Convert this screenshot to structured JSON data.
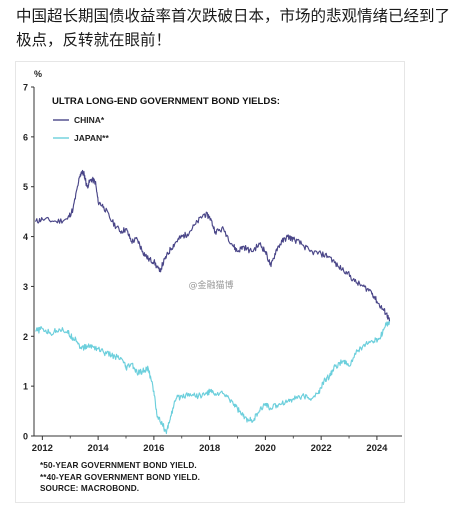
{
  "post": {
    "caption": "中国超长期国债收益率首次跌破日本，市场的悲观情绪已经到了极点，反转就在眼前！",
    "watermark": "@金融猫博"
  },
  "chart_data": {
    "type": "line",
    "title": "ULTRA LONG-END GOVERNMENT BOND YIELDS:",
    "ylabel": "%",
    "xlim": [
      2011.7,
      2024.9
    ],
    "ylim": [
      0,
      7
    ],
    "xticks": [
      2012,
      2014,
      2016,
      2018,
      2020,
      2022,
      2024
    ],
    "yticks": [
      0,
      1,
      2,
      3,
      4,
      5,
      6,
      7
    ],
    "legend_position": "top-left",
    "series": [
      {
        "name": "CHINA*",
        "color": "#4a4688",
        "x": [
          2011.75,
          2012.0,
          2012.5,
          2012.9,
          2013.1,
          2013.3,
          2013.4,
          2013.5,
          2013.6,
          2013.75,
          2013.9,
          2014.0,
          2014.2,
          2014.5,
          2014.8,
          2015.0,
          2015.2,
          2015.4,
          2015.6,
          2015.8,
          2016.0,
          2016.2,
          2016.4,
          2016.6,
          2016.8,
          2017.0,
          2017.2,
          2017.5,
          2017.8,
          2018.0,
          2018.2,
          2018.5,
          2018.8,
          2019.0,
          2019.2,
          2019.5,
          2019.8,
          2020.0,
          2020.2,
          2020.4,
          2020.6,
          2020.8,
          2021.0,
          2021.3,
          2021.6,
          2022.0,
          2022.3,
          2022.6,
          2022.9,
          2023.2,
          2023.5,
          2023.8,
          2024.0,
          2024.2,
          2024.35,
          2024.45
        ],
        "y": [
          4.3,
          4.35,
          4.3,
          4.35,
          4.55,
          5.1,
          5.3,
          5.25,
          5.0,
          5.15,
          5.1,
          4.7,
          4.6,
          4.3,
          4.1,
          4.15,
          3.9,
          3.95,
          3.7,
          3.55,
          3.5,
          3.3,
          3.55,
          3.75,
          3.9,
          4.0,
          4.05,
          4.25,
          4.45,
          4.4,
          4.1,
          4.15,
          3.85,
          3.7,
          3.8,
          3.7,
          3.85,
          3.7,
          3.4,
          3.75,
          3.9,
          4.0,
          3.95,
          3.85,
          3.7,
          3.65,
          3.6,
          3.4,
          3.3,
          3.1,
          3.0,
          2.9,
          2.7,
          2.55,
          2.45,
          2.3
        ]
      },
      {
        "name": "JAPAN**",
        "color": "#6ccfdc",
        "x": [
          2011.75,
          2012.0,
          2012.3,
          2012.6,
          2012.9,
          2013.0,
          2013.2,
          2013.4,
          2013.6,
          2013.8,
          2014.0,
          2014.3,
          2014.6,
          2014.9,
          2015.0,
          2015.2,
          2015.4,
          2015.6,
          2015.8,
          2016.0,
          2016.1,
          2016.3,
          2016.45,
          2016.6,
          2016.8,
          2017.0,
          2017.3,
          2017.6,
          2017.9,
          2018.0,
          2018.2,
          2018.5,
          2018.8,
          2019.0,
          2019.2,
          2019.4,
          2019.6,
          2019.8,
          2020.0,
          2020.2,
          2020.5,
          2020.8,
          2021.0,
          2021.3,
          2021.6,
          2021.9,
          2022.1,
          2022.3,
          2022.5,
          2022.8,
          2023.0,
          2023.3,
          2023.6,
          2023.9,
          2024.1,
          2024.3,
          2024.45
        ],
        "y": [
          2.1,
          2.15,
          2.05,
          2.15,
          2.1,
          2.0,
          1.95,
          1.75,
          1.8,
          1.8,
          1.75,
          1.65,
          1.6,
          1.5,
          1.35,
          1.45,
          1.25,
          1.3,
          1.35,
          0.9,
          0.45,
          0.25,
          0.05,
          0.4,
          0.75,
          0.8,
          0.85,
          0.8,
          0.85,
          0.9,
          0.85,
          0.85,
          0.7,
          0.55,
          0.4,
          0.3,
          0.35,
          0.5,
          0.65,
          0.55,
          0.65,
          0.7,
          0.75,
          0.8,
          0.75,
          0.85,
          1.1,
          1.2,
          1.4,
          1.5,
          1.4,
          1.7,
          1.85,
          1.9,
          1.95,
          2.2,
          2.3
        ]
      }
    ],
    "notes": [
      "*50-YEAR GOVERNMENT BOND YIELD.",
      "**40-YEAR GOVERNMENT BOND YIELD.",
      "SOURCE: MACROBOND."
    ]
  }
}
